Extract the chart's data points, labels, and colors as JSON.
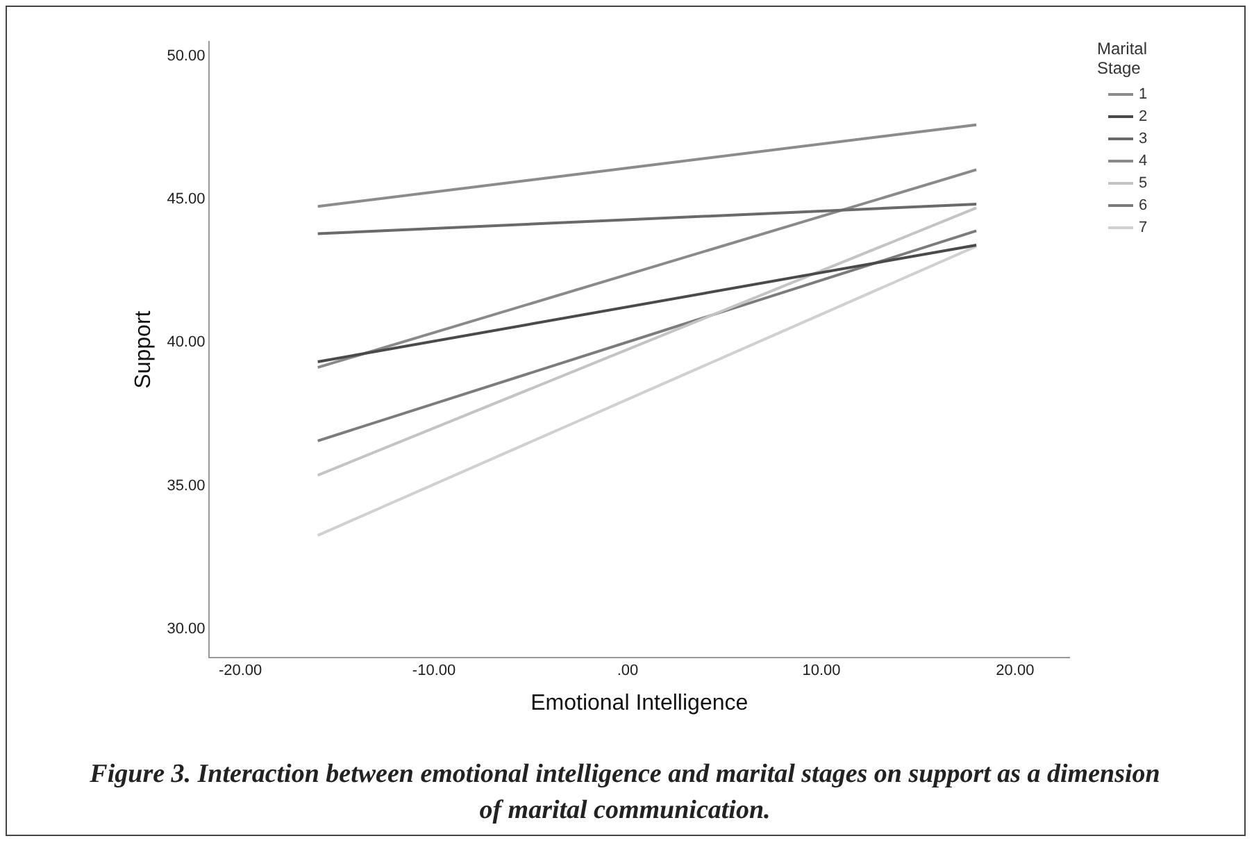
{
  "chart_data": {
    "type": "line",
    "xlabel": "Emotional Intelligence",
    "ylabel": "Support",
    "legend_title": "Marital Stage",
    "x": [
      -16,
      18
    ],
    "series": [
      {
        "name": "1",
        "color": "#8c8c8c",
        "values": [
          44.75,
          47.6
        ]
      },
      {
        "name": "2",
        "color": "#4a4a4a",
        "values": [
          39.33,
          43.4
        ]
      },
      {
        "name": "3",
        "color": "#6a6a6a",
        "values": [
          43.8,
          44.83
        ]
      },
      {
        "name": "4",
        "color": "#8a8a8a",
        "values": [
          39.13,
          46.03
        ]
      },
      {
        "name": "5",
        "color": "#c4c4c4",
        "values": [
          35.37,
          44.7
        ]
      },
      {
        "name": "6",
        "color": "#7c7c7c",
        "values": [
          36.57,
          43.9
        ]
      },
      {
        "name": "7",
        "color": "#d0d0d0",
        "values": [
          33.27,
          43.36
        ]
      }
    ],
    "xlim": [
      -21.6,
      22.8
    ],
    "xticks": [
      {
        "value": -20,
        "label": "-20.00"
      },
      {
        "value": -10,
        "label": "-10.00"
      },
      {
        "value": 0,
        "label": ".00"
      },
      {
        "value": 10,
        "label": "10.00"
      },
      {
        "value": 20,
        "label": "20.00"
      }
    ],
    "ylim": [
      29,
      50.5
    ],
    "yticks": [
      {
        "value": 30,
        "label": "30.00"
      },
      {
        "value": 35,
        "label": "35.00"
      },
      {
        "value": 40,
        "label": "40.00"
      },
      {
        "value": 45,
        "label": "45.00"
      },
      {
        "value": 50,
        "label": "50.00"
      }
    ],
    "grid": false,
    "legend": "top right",
    "marker": "none",
    "line_style": "solid",
    "annotations": [
      "Figure 3. Interaction between emotional intelligence and marital stages on support as a dimension of marital communication."
    ]
  }
}
